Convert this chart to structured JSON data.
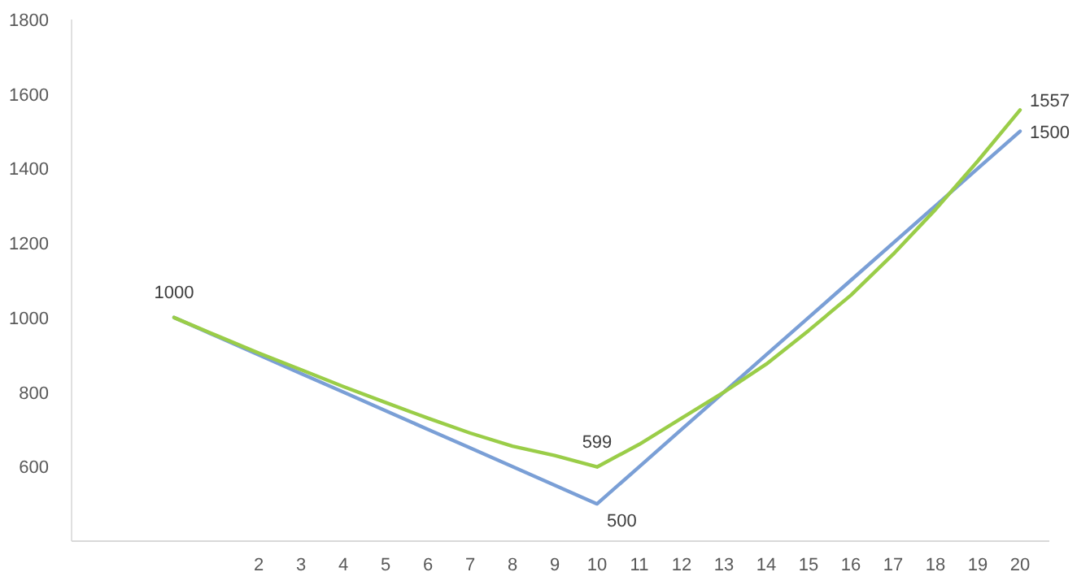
{
  "chart_data": {
    "type": "line",
    "categories": [
      null,
      null,
      "2",
      "3",
      "4",
      "5",
      "6",
      "7",
      "8",
      "9",
      "10",
      "11",
      "12",
      "13",
      "14",
      "15",
      "16",
      "17",
      "18",
      "19",
      "20"
    ],
    "ylim": [
      400,
      1800
    ],
    "yticks": [
      600,
      800,
      1000,
      1200,
      1400,
      1600,
      1800
    ],
    "grid": false,
    "marker": "none",
    "series": [
      {
        "color": "#7a9fd6",
        "values": [
          1000,
          950,
          900,
          850,
          800,
          750,
          700,
          650,
          600,
          550,
          500,
          600,
          700,
          800,
          900,
          1000,
          1100,
          1200,
          1300,
          1400,
          1500
        ],
        "value_labels": [
          null,
          null,
          null,
          null,
          null,
          null,
          null,
          null,
          null,
          null,
          "500",
          null,
          null,
          null,
          null,
          null,
          null,
          null,
          null,
          null,
          "1500"
        ]
      },
      {
        "color": "#9acd48",
        "values": [
          1000,
          952,
          905,
          860,
          815,
          772,
          730,
          690,
          655,
          630,
          599,
          660,
          730,
          800,
          875,
          965,
          1060,
          1170,
          1290,
          1420,
          1557
        ],
        "value_labels": [
          "1000",
          null,
          null,
          null,
          null,
          null,
          null,
          null,
          null,
          null,
          "599",
          null,
          null,
          null,
          null,
          null,
          null,
          null,
          null,
          null,
          "1557"
        ]
      }
    ]
  }
}
